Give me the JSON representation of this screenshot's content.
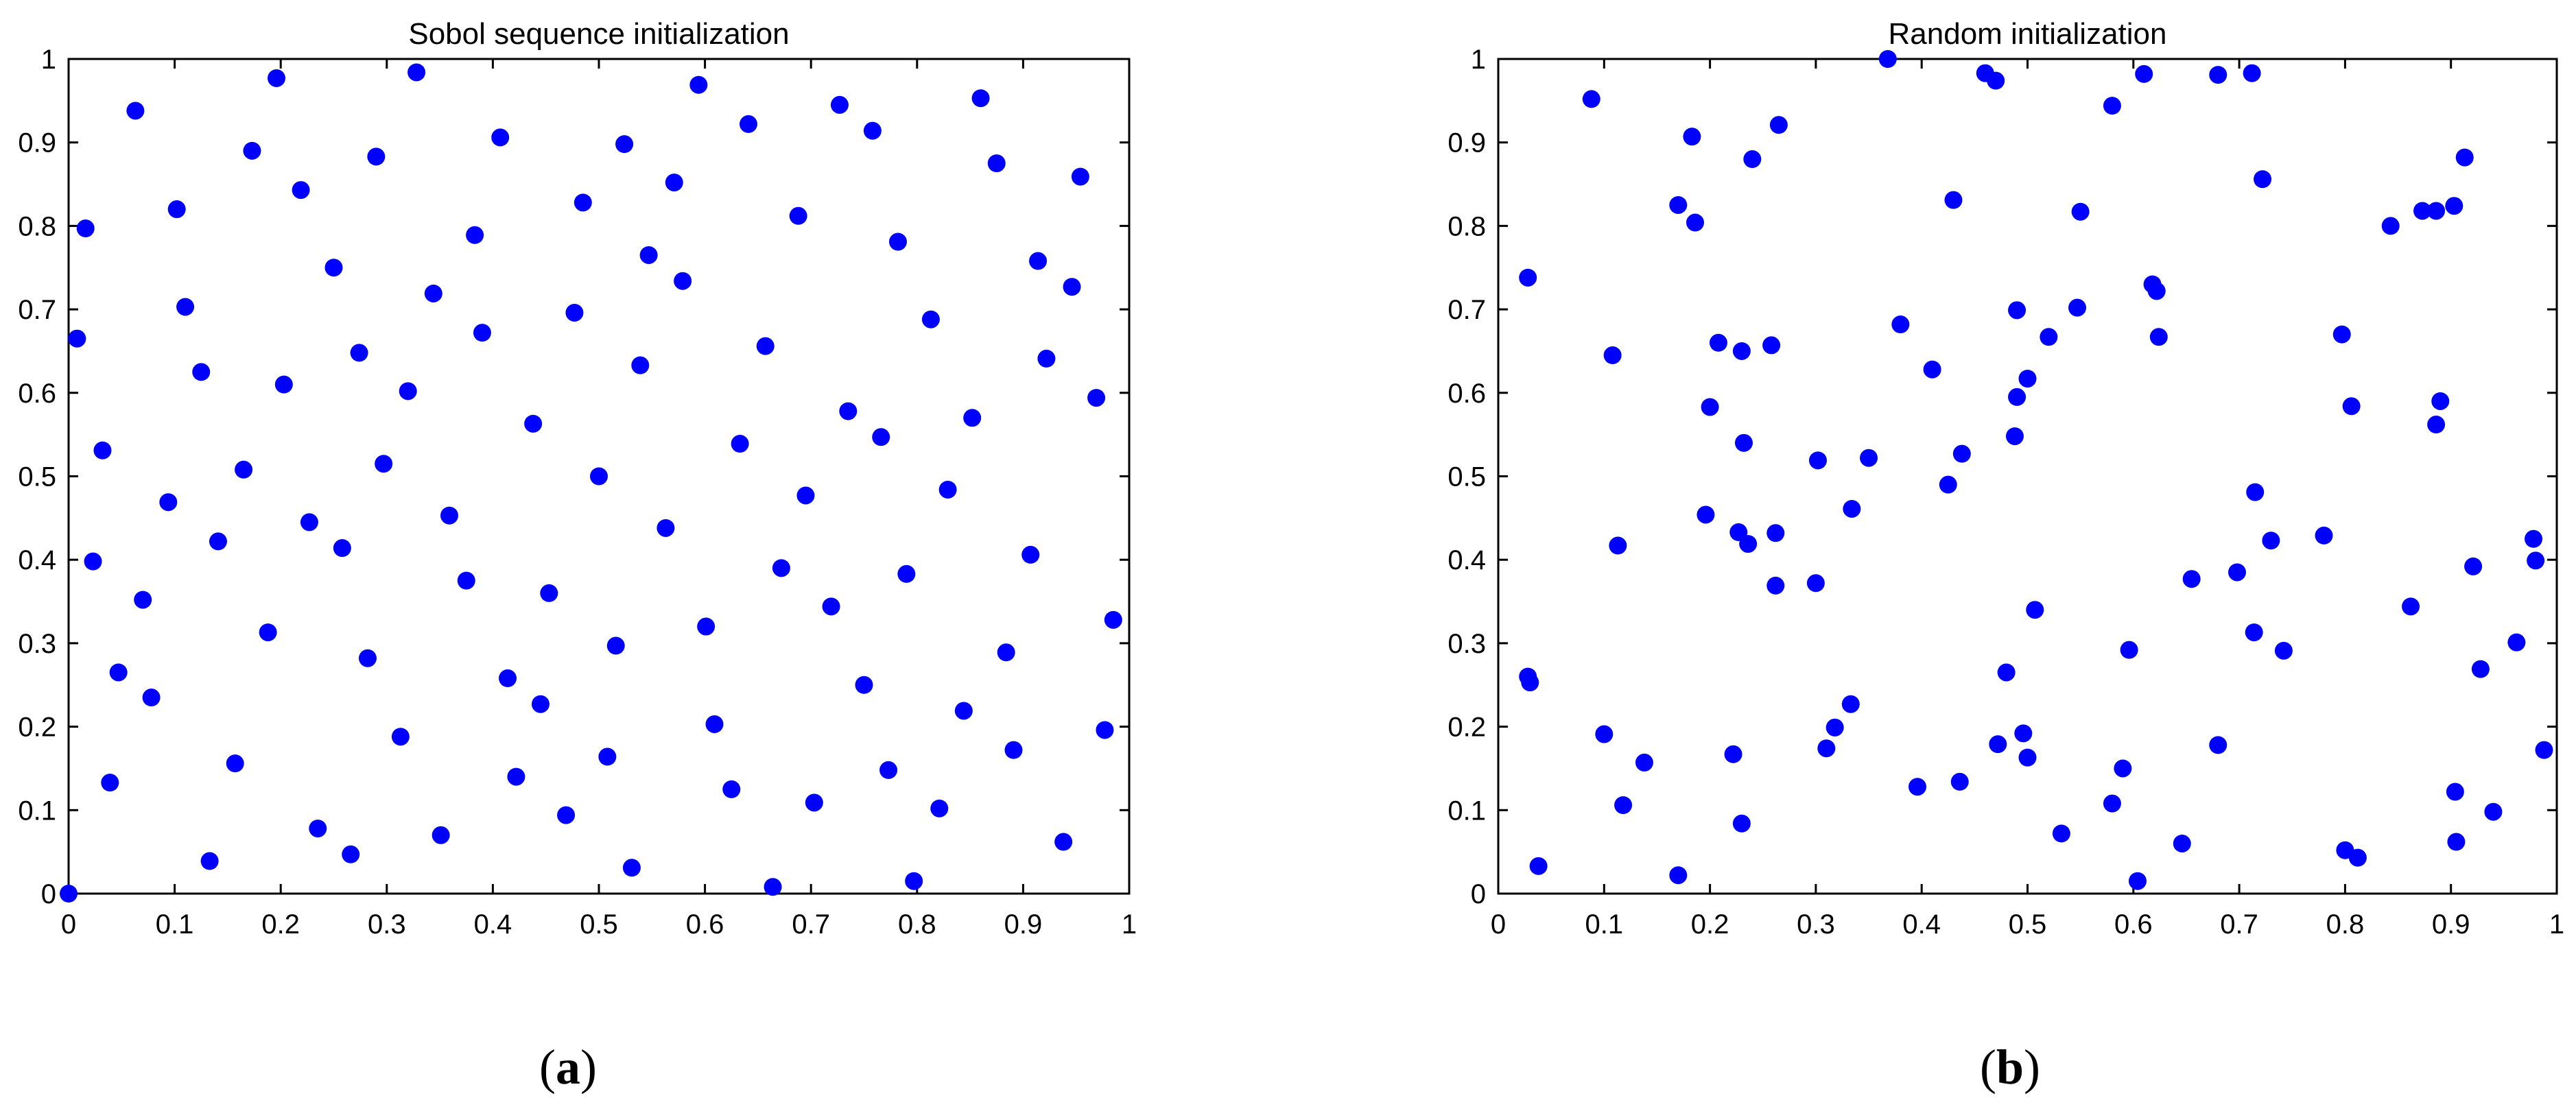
{
  "marker_color": "#0000ff",
  "chart_data": [
    {
      "type": "scatter",
      "title": "Sobol sequence initialization",
      "caption_letter": "a",
      "xlim": [
        0,
        1
      ],
      "ylim": [
        0,
        1
      ],
      "grid": false,
      "xticks": [
        "0",
        "0.1",
        "0.2",
        "0.3",
        "0.4",
        "0.5",
        "0.6",
        "0.7",
        "0.8",
        "0.9",
        "1"
      ],
      "yticks": [
        "0",
        "0.1",
        "0.2",
        "0.3",
        "0.4",
        "0.5",
        "0.6",
        "0.7",
        "0.8",
        "0.9",
        "1"
      ],
      "points": [
        [
          0.0,
          0.0
        ],
        [
          0.008,
          0.665
        ],
        [
          0.016,
          0.797
        ],
        [
          0.023,
          0.398
        ],
        [
          0.032,
          0.531
        ],
        [
          0.039,
          0.133
        ],
        [
          0.047,
          0.265
        ],
        [
          0.063,
          0.938
        ],
        [
          0.07,
          0.352
        ],
        [
          0.078,
          0.235
        ],
        [
          0.094,
          0.469
        ],
        [
          0.102,
          0.82
        ],
        [
          0.11,
          0.703
        ],
        [
          0.125,
          0.625
        ],
        [
          0.133,
          0.039
        ],
        [
          0.141,
          0.422
        ],
        [
          0.157,
          0.156
        ],
        [
          0.165,
          0.508
        ],
        [
          0.173,
          0.89
        ],
        [
          0.188,
          0.313
        ],
        [
          0.196,
          0.977
        ],
        [
          0.203,
          0.61
        ],
        [
          0.219,
          0.843
        ],
        [
          0.227,
          0.445
        ],
        [
          0.235,
          0.078
        ],
        [
          0.25,
          0.75
        ],
        [
          0.258,
          0.414
        ],
        [
          0.266,
          0.047
        ],
        [
          0.274,
          0.648
        ],
        [
          0.282,
          0.282
        ],
        [
          0.29,
          0.883
        ],
        [
          0.297,
          0.515
        ],
        [
          0.313,
          0.188
        ],
        [
          0.32,
          0.602
        ],
        [
          0.328,
          0.984
        ],
        [
          0.344,
          0.719
        ],
        [
          0.351,
          0.07
        ],
        [
          0.359,
          0.453
        ],
        [
          0.375,
          0.375
        ],
        [
          0.383,
          0.789
        ],
        [
          0.39,
          0.672
        ],
        [
          0.407,
          0.906
        ],
        [
          0.414,
          0.258
        ],
        [
          0.422,
          0.14
        ],
        [
          0.438,
          0.563
        ],
        [
          0.445,
          0.227
        ],
        [
          0.453,
          0.36
        ],
        [
          0.469,
          0.094
        ],
        [
          0.477,
          0.696
        ],
        [
          0.485,
          0.828
        ],
        [
          0.5,
          0.5
        ],
        [
          0.508,
          0.164
        ],
        [
          0.516,
          0.297
        ],
        [
          0.524,
          0.898
        ],
        [
          0.531,
          0.031
        ],
        [
          0.539,
          0.633
        ],
        [
          0.547,
          0.765
        ],
        [
          0.563,
          0.438
        ],
        [
          0.571,
          0.852
        ],
        [
          0.579,
          0.734
        ],
        [
          0.594,
          0.969
        ],
        [
          0.601,
          0.32
        ],
        [
          0.609,
          0.203
        ],
        [
          0.625,
          0.125
        ],
        [
          0.633,
          0.539
        ],
        [
          0.641,
          0.922
        ],
        [
          0.657,
          0.656
        ],
        [
          0.664,
          0.008
        ],
        [
          0.672,
          0.39
        ],
        [
          0.688,
          0.812
        ],
        [
          0.695,
          0.477
        ],
        [
          0.703,
          0.109
        ],
        [
          0.719,
          0.344
        ],
        [
          0.727,
          0.945
        ],
        [
          0.735,
          0.578
        ],
        [
          0.75,
          0.25
        ],
        [
          0.758,
          0.914
        ],
        [
          0.766,
          0.547
        ],
        [
          0.773,
          0.148
        ],
        [
          0.782,
          0.781
        ],
        [
          0.79,
          0.383
        ],
        [
          0.797,
          0.015
        ],
        [
          0.813,
          0.688
        ],
        [
          0.821,
          0.102
        ],
        [
          0.829,
          0.484
        ],
        [
          0.844,
          0.219
        ],
        [
          0.852,
          0.57
        ],
        [
          0.86,
          0.953
        ],
        [
          0.875,
          0.875
        ],
        [
          0.884,
          0.289
        ],
        [
          0.891,
          0.172
        ],
        [
          0.907,
          0.406
        ],
        [
          0.914,
          0.758
        ],
        [
          0.922,
          0.641
        ],
        [
          0.938,
          0.062
        ],
        [
          0.946,
          0.727
        ],
        [
          0.954,
          0.859
        ],
        [
          0.969,
          0.594
        ],
        [
          0.977,
          0.196
        ],
        [
          0.985,
          0.328
        ]
      ]
    },
    {
      "type": "scatter",
      "title": "Random initialization",
      "caption_letter": "b",
      "xlim": [
        0,
        1
      ],
      "ylim": [
        0,
        1
      ],
      "grid": false,
      "xticks": [
        "0",
        "0.1",
        "0.2",
        "0.3",
        "0.4",
        "0.5",
        "0.6",
        "0.7",
        "0.8",
        "0.9",
        "1"
      ],
      "yticks": [
        "0",
        "0.1",
        "0.2",
        "0.3",
        "0.4",
        "0.5",
        "0.6",
        "0.7",
        "0.8",
        "0.9",
        "1"
      ],
      "points": [
        [
          0.028,
          0.738
        ],
        [
          0.028,
          0.26
        ],
        [
          0.03,
          0.253
        ],
        [
          0.038,
          0.033
        ],
        [
          0.088,
          0.952
        ],
        [
          0.1,
          0.191
        ],
        [
          0.108,
          0.645
        ],
        [
          0.113,
          0.417
        ],
        [
          0.118,
          0.106
        ],
        [
          0.138,
          0.157
        ],
        [
          0.17,
          0.825
        ],
        [
          0.17,
          0.022
        ],
        [
          0.183,
          0.907
        ],
        [
          0.186,
          0.804
        ],
        [
          0.196,
          0.454
        ],
        [
          0.2,
          0.583
        ],
        [
          0.208,
          0.66
        ],
        [
          0.222,
          0.167
        ],
        [
          0.227,
          0.433
        ],
        [
          0.23,
          0.084
        ],
        [
          0.23,
          0.65
        ],
        [
          0.232,
          0.54
        ],
        [
          0.236,
          0.419
        ],
        [
          0.24,
          0.88
        ],
        [
          0.258,
          0.657
        ],
        [
          0.262,
          0.369
        ],
        [
          0.262,
          0.432
        ],
        [
          0.265,
          0.921
        ],
        [
          0.3,
          0.372
        ],
        [
          0.302,
          0.519
        ],
        [
          0.31,
          0.174
        ],
        [
          0.318,
          0.199
        ],
        [
          0.333,
          0.227
        ],
        [
          0.334,
          0.461
        ],
        [
          0.35,
          0.522
        ],
        [
          0.368,
          1.0
        ],
        [
          0.38,
          0.682
        ],
        [
          0.396,
          0.128
        ],
        [
          0.41,
          0.628
        ],
        [
          0.425,
          0.49
        ],
        [
          0.43,
          0.831
        ],
        [
          0.436,
          0.134
        ],
        [
          0.438,
          0.527
        ],
        [
          0.46,
          0.983
        ],
        [
          0.47,
          0.974
        ],
        [
          0.472,
          0.179
        ],
        [
          0.48,
          0.265
        ],
        [
          0.488,
          0.548
        ],
        [
          0.49,
          0.699
        ],
        [
          0.49,
          0.595
        ],
        [
          0.496,
          0.192
        ],
        [
          0.5,
          0.617
        ],
        [
          0.5,
          0.163
        ],
        [
          0.507,
          0.34
        ],
        [
          0.52,
          0.667
        ],
        [
          0.532,
          0.072
        ],
        [
          0.547,
          0.702
        ],
        [
          0.55,
          0.817
        ],
        [
          0.58,
          0.108
        ],
        [
          0.58,
          0.944
        ],
        [
          0.59,
          0.15
        ],
        [
          0.596,
          0.292
        ],
        [
          0.604,
          0.015
        ],
        [
          0.61,
          0.982
        ],
        [
          0.618,
          0.73
        ],
        [
          0.622,
          0.722
        ],
        [
          0.624,
          0.667
        ],
        [
          0.646,
          0.06
        ],
        [
          0.655,
          0.377
        ],
        [
          0.68,
          0.178
        ],
        [
          0.68,
          0.981
        ],
        [
          0.698,
          0.385
        ],
        [
          0.712,
          0.983
        ],
        [
          0.714,
          0.313
        ],
        [
          0.715,
          0.481
        ],
        [
          0.722,
          0.856
        ],
        [
          0.73,
          0.423
        ],
        [
          0.742,
          0.291
        ],
        [
          0.78,
          0.429
        ],
        [
          0.797,
          0.67
        ],
        [
          0.8,
          0.052
        ],
        [
          0.806,
          0.584
        ],
        [
          0.812,
          0.043
        ],
        [
          0.843,
          0.8
        ],
        [
          0.862,
          0.344
        ],
        [
          0.873,
          0.818
        ],
        [
          0.886,
          0.818
        ],
        [
          0.886,
          0.562
        ],
        [
          0.89,
          0.59
        ],
        [
          0.903,
          0.824
        ],
        [
          0.904,
          0.122
        ],
        [
          0.905,
          0.062
        ],
        [
          0.913,
          0.882
        ],
        [
          0.921,
          0.392
        ],
        [
          0.928,
          0.269
        ],
        [
          0.94,
          0.098
        ],
        [
          0.962,
          0.301
        ],
        [
          0.978,
          0.425
        ],
        [
          0.98,
          0.399
        ],
        [
          0.988,
          0.172
        ]
      ]
    }
  ]
}
